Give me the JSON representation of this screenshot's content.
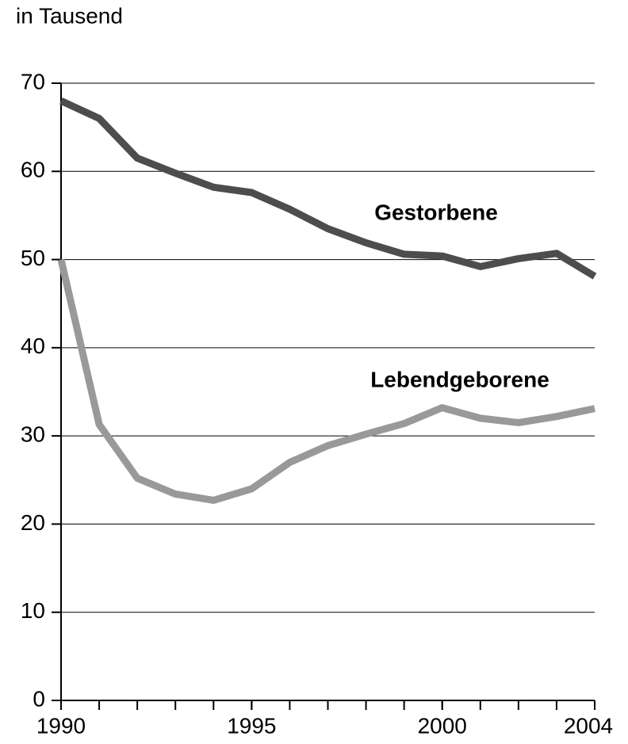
{
  "chart_data": {
    "type": "line",
    "y_label": "in Tausend",
    "x": [
      1990,
      1991,
      1992,
      1993,
      1994,
      1995,
      1996,
      1997,
      1998,
      1999,
      2000,
      2001,
      2002,
      2003,
      2004
    ],
    "series": [
      {
        "name": "Gestorbene",
        "color": "#4d4d4d",
        "values": [
          68.0,
          66.0,
          61.5,
          59.8,
          58.2,
          57.6,
          55.7,
          53.5,
          51.9,
          50.6,
          50.4,
          49.2,
          50.1,
          50.7,
          48.1
        ]
      },
      {
        "name": "Lebendgeborene",
        "color": "#999999",
        "values": [
          50.0,
          31.3,
          25.2,
          23.4,
          22.7,
          24.0,
          27.0,
          28.9,
          30.2,
          31.4,
          33.2,
          32.0,
          31.5,
          32.2,
          33.1
        ]
      }
    ],
    "xlim": [
      1990,
      2004
    ],
    "xticks": [
      1990,
      1995,
      2000,
      2004
    ],
    "ylim": [
      0,
      70
    ],
    "yticks": [
      0,
      10,
      20,
      30,
      40,
      50,
      60,
      70
    ],
    "grid": true
  }
}
